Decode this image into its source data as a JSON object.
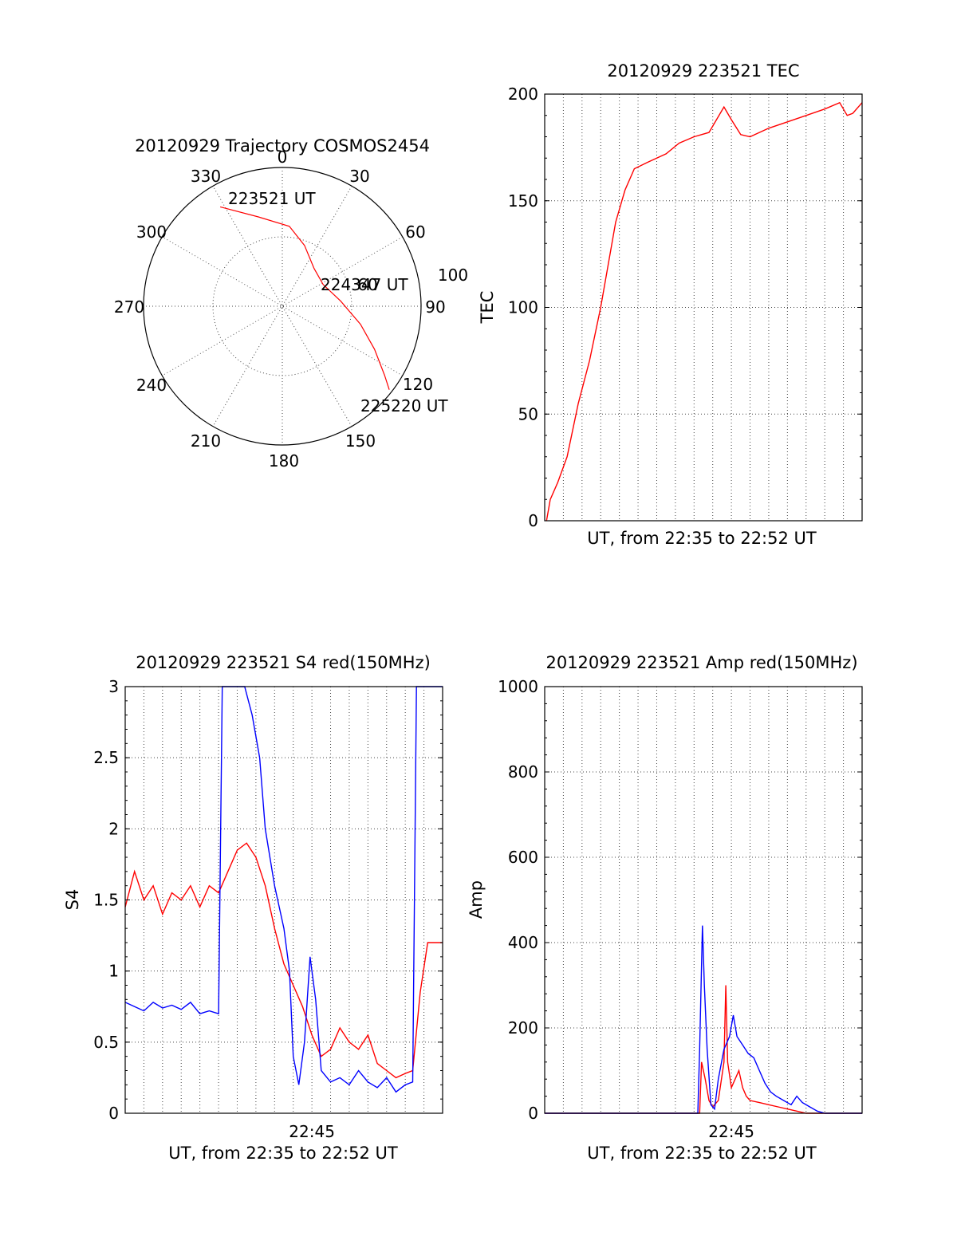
{
  "colors": {
    "red": "#ff0000",
    "blue": "#0000ff",
    "grid": "#444444",
    "frame": "#000000"
  },
  "chart_data": [
    {
      "id": "trajectory",
      "type": "polar",
      "title": "20120929 Trajectory COSMOS2454",
      "angle_labels": [
        "0",
        "30",
        "60",
        "90",
        "120",
        "150",
        "180",
        "210",
        "240",
        "270",
        "300",
        "330"
      ],
      "radial_labels": [
        "60",
        "100"
      ],
      "series": [
        {
          "color": "red",
          "points": [
            [
              328,
              76
            ],
            [
              345,
              60
            ],
            [
              5,
              52
            ],
            [
              20,
              42
            ],
            [
              40,
              32
            ],
            [
              62,
              30
            ],
            [
              85,
              38
            ],
            [
              103,
              52
            ],
            [
              115,
              66
            ],
            [
              124,
              80
            ],
            [
              128,
              88
            ]
          ]
        }
      ],
      "annotations": [
        {
          "text": "223521 UT"
        },
        {
          "text": "224347 UT"
        },
        {
          "text": "225220 UT"
        }
      ]
    },
    {
      "id": "tec",
      "type": "line",
      "title": "20120929 223521 TEC",
      "xlabel": "UT, from 22:35 to 22:52 UT",
      "ylabel": "TEC",
      "xlim": [
        0,
        17
      ],
      "ylim": [
        0,
        200
      ],
      "yticks": [
        "0",
        "50",
        "100",
        "150",
        "200"
      ],
      "series": [
        {
          "color": "red",
          "points": [
            [
              0.1,
              0
            ],
            [
              0.3,
              10
            ],
            [
              0.7,
              18
            ],
            [
              1.2,
              30
            ],
            [
              1.8,
              55
            ],
            [
              2.4,
              75
            ],
            [
              3.0,
              100
            ],
            [
              3.4,
              120
            ],
            [
              3.8,
              140
            ],
            [
              4.3,
              155
            ],
            [
              4.8,
              165
            ],
            [
              5.5,
              168
            ],
            [
              6.5,
              172
            ],
            [
              7.2,
              177
            ],
            [
              8.0,
              180
            ],
            [
              8.8,
              182
            ],
            [
              9.6,
              194
            ],
            [
              10.0,
              188
            ],
            [
              10.5,
              181
            ],
            [
              11.0,
              180
            ],
            [
              12.0,
              184
            ],
            [
              13.0,
              187
            ],
            [
              14.0,
              190
            ],
            [
              15.0,
              193
            ],
            [
              15.8,
              196
            ],
            [
              16.2,
              190
            ],
            [
              16.5,
              191
            ],
            [
              17.0,
              196
            ]
          ]
        }
      ]
    },
    {
      "id": "s4",
      "type": "line",
      "title": "20120929 223521 S4 red(150MHz)",
      "xlabel": "UT, from 22:35 to 22:52 UT",
      "ylabel": "S4",
      "xlim": [
        0,
        17
      ],
      "ylim": [
        0,
        3
      ],
      "yticks": [
        "0",
        "0.5",
        "1",
        "1.5",
        "2",
        "2.5",
        "3"
      ],
      "xticks": [
        {
          "value": 10,
          "label": "22:45"
        }
      ],
      "series": [
        {
          "color": "red",
          "points": [
            [
              0,
              1.45
            ],
            [
              0.5,
              1.7
            ],
            [
              1,
              1.5
            ],
            [
              1.5,
              1.6
            ],
            [
              2,
              1.4
            ],
            [
              2.5,
              1.55
            ],
            [
              3,
              1.5
            ],
            [
              3.5,
              1.6
            ],
            [
              4,
              1.45
            ],
            [
              4.5,
              1.6
            ],
            [
              5,
              1.55
            ],
            [
              5.5,
              1.7
            ],
            [
              6,
              1.85
            ],
            [
              6.5,
              1.9
            ],
            [
              7,
              1.8
            ],
            [
              7.5,
              1.6
            ],
            [
              8,
              1.3
            ],
            [
              8.5,
              1.05
            ],
            [
              9,
              0.9
            ],
            [
              9.5,
              0.75
            ],
            [
              10,
              0.55
            ],
            [
              10.5,
              0.4
            ],
            [
              11,
              0.45
            ],
            [
              11.5,
              0.6
            ],
            [
              12,
              0.5
            ],
            [
              12.5,
              0.45
            ],
            [
              13,
              0.55
            ],
            [
              13.5,
              0.35
            ],
            [
              14,
              0.3
            ],
            [
              14.5,
              0.25
            ],
            [
              15,
              0.28
            ],
            [
              15.4,
              0.3
            ],
            [
              15.8,
              0.85
            ],
            [
              16.2,
              1.2
            ],
            [
              17,
              1.2
            ]
          ]
        },
        {
          "color": "blue",
          "points": [
            [
              0,
              0.78
            ],
            [
              0.5,
              0.75
            ],
            [
              1,
              0.72
            ],
            [
              1.5,
              0.78
            ],
            [
              2,
              0.74
            ],
            [
              2.5,
              0.76
            ],
            [
              3,
              0.73
            ],
            [
              3.5,
              0.78
            ],
            [
              4,
              0.7
            ],
            [
              4.5,
              0.72
            ],
            [
              5,
              0.7
            ],
            [
              5.2,
              3
            ],
            [
              5.6,
              3
            ],
            [
              6,
              3
            ],
            [
              6.4,
              3
            ],
            [
              6.8,
              2.8
            ],
            [
              7.2,
              2.5
            ],
            [
              7.5,
              2.0
            ],
            [
              8,
              1.6
            ],
            [
              8.5,
              1.3
            ],
            [
              8.8,
              1.0
            ],
            [
              9,
              0.4
            ],
            [
              9.3,
              0.2
            ],
            [
              9.6,
              0.5
            ],
            [
              9.9,
              1.1
            ],
            [
              10.2,
              0.8
            ],
            [
              10.5,
              0.3
            ],
            [
              11,
              0.22
            ],
            [
              11.5,
              0.25
            ],
            [
              12,
              0.2
            ],
            [
              12.5,
              0.3
            ],
            [
              13,
              0.22
            ],
            [
              13.5,
              0.18
            ],
            [
              14,
              0.25
            ],
            [
              14.5,
              0.15
            ],
            [
              15,
              0.2
            ],
            [
              15.4,
              0.22
            ],
            [
              15.6,
              3
            ],
            [
              16,
              3
            ],
            [
              16.4,
              3
            ],
            [
              16.8,
              3
            ],
            [
              17,
              3
            ]
          ]
        }
      ]
    },
    {
      "id": "amp",
      "type": "line",
      "title": "20120929 223521 Amp red(150MHz)",
      "xlabel": "UT, from 22:35 to 22:52 UT",
      "ylabel": "Amp",
      "xlim": [
        0,
        17
      ],
      "ylim": [
        0,
        1000
      ],
      "yticks": [
        "0",
        "200",
        "400",
        "600",
        "800",
        "1000"
      ],
      "xticks": [
        {
          "value": 10,
          "label": "22:45"
        }
      ],
      "series": [
        {
          "color": "red",
          "points": [
            [
              0,
              0
            ],
            [
              8.3,
              0
            ],
            [
              8.4,
              120
            ],
            [
              8.6,
              80
            ],
            [
              8.8,
              30
            ],
            [
              9.0,
              15
            ],
            [
              9.3,
              30
            ],
            [
              9.6,
              120
            ],
            [
              9.7,
              300
            ],
            [
              9.8,
              120
            ],
            [
              10,
              60
            ],
            [
              10.2,
              80
            ],
            [
              10.4,
              100
            ],
            [
              10.6,
              60
            ],
            [
              10.8,
              40
            ],
            [
              11,
              30
            ],
            [
              11.5,
              25
            ],
            [
              12,
              20
            ],
            [
              12.5,
              15
            ],
            [
              13,
              10
            ],
            [
              13.5,
              5
            ],
            [
              14,
              0
            ],
            [
              17,
              0
            ]
          ]
        },
        {
          "color": "blue",
          "points": [
            [
              0,
              0
            ],
            [
              8.2,
              0
            ],
            [
              8.3,
              150
            ],
            [
              8.45,
              440
            ],
            [
              8.55,
              300
            ],
            [
              8.7,
              150
            ],
            [
              8.9,
              20
            ],
            [
              9.1,
              10
            ],
            [
              9.3,
              80
            ],
            [
              9.6,
              150
            ],
            [
              9.9,
              180
            ],
            [
              10.1,
              230
            ],
            [
              10.3,
              180
            ],
            [
              10.6,
              160
            ],
            [
              10.9,
              140
            ],
            [
              11.2,
              130
            ],
            [
              11.5,
              100
            ],
            [
              11.8,
              70
            ],
            [
              12.1,
              50
            ],
            [
              12.4,
              40
            ],
            [
              12.8,
              30
            ],
            [
              13.2,
              20
            ],
            [
              13.5,
              40
            ],
            [
              13.8,
              25
            ],
            [
              14.2,
              15
            ],
            [
              14.6,
              5
            ],
            [
              15,
              0
            ],
            [
              17,
              0
            ]
          ]
        }
      ]
    }
  ]
}
